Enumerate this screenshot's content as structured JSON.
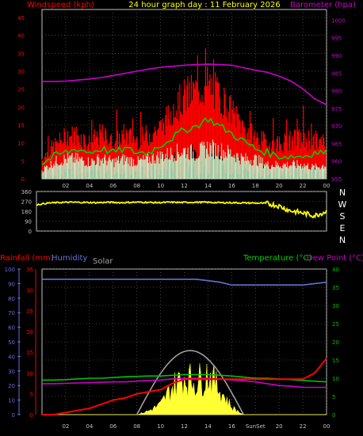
{
  "title": "24 hour graph day : 11 February 2026",
  "colors": {
    "wind": "#ff0000",
    "gust": "#ff2a2a",
    "avg": "#00d000",
    "calm": "#c8f0c8",
    "baro": "#cc00cc",
    "dir": "#ffff00",
    "rain": "#ff0000",
    "hum": "#6670d8",
    "solar": "#ffff33",
    "temp": "#00c000",
    "dew": "#cc00cc",
    "sun": "#a0a0a0",
    "grid": "#707070",
    "axis": "#c0c0c0"
  },
  "x_ticks": [
    "02",
    "04",
    "06",
    "08",
    "10",
    "12",
    "14",
    "16",
    "18",
    "20",
    "22",
    "00"
  ],
  "bottom_x_ticks": [
    "02",
    "04",
    "06",
    "08",
    "10",
    "12",
    "14",
    "16",
    "SunSet",
    "20",
    "22",
    "00"
  ],
  "chart_data": [
    {
      "type": "line",
      "name": "wind",
      "labels": {
        "left": "Windspeed (kph)",
        "right": "Barometer (hpa)"
      },
      "left_ticks": [
        "0",
        "5",
        "10",
        "15",
        "20",
        "25",
        "30",
        "35",
        "40",
        "45"
      ],
      "right_ticks": [
        "955",
        "960",
        "965",
        "970",
        "975",
        "980",
        "985",
        "990",
        "995",
        "1000"
      ],
      "ylim_left": [
        0,
        45
      ],
      "ylim_right": [
        955,
        1003
      ],
      "hours": [
        0,
        1,
        2,
        3,
        4,
        5,
        6,
        7,
        8,
        9,
        10,
        11,
        12,
        13,
        14,
        15,
        16,
        17,
        18,
        19,
        20,
        21,
        22,
        23,
        24
      ],
      "wind_max": [
        7,
        11,
        14,
        15,
        12,
        15,
        12,
        15,
        13,
        15,
        17,
        22,
        27,
        29,
        31,
        27,
        22,
        17,
        14,
        12,
        12,
        13,
        14,
        13,
        12
      ],
      "wind_min": [
        2,
        4,
        6,
        5,
        4,
        6,
        5,
        5,
        5,
        5,
        7,
        9,
        11,
        12,
        12,
        11,
        10,
        7,
        5,
        4,
        4,
        4,
        4,
        4,
        4
      ],
      "wind_avg": [
        4,
        6,
        7,
        8,
        7,
        8,
        7,
        8,
        7,
        7,
        9,
        11,
        13,
        14,
        16,
        14,
        12,
        10,
        8,
        7,
        6,
        6,
        6,
        7,
        7
      ],
      "calm_max": [
        3,
        6,
        7,
        7,
        6,
        7,
        6,
        7,
        6,
        7,
        8,
        9,
        10,
        9,
        11,
        10,
        9,
        7,
        7,
        5,
        5,
        5,
        5,
        4,
        5
      ],
      "barometer": [
        982.6,
        982.6,
        982.7,
        983.0,
        983.3,
        983.7,
        984.3,
        984.9,
        985.5,
        986.1,
        986.6,
        986.9,
        987.2,
        987.4,
        987.5,
        987.4,
        987.2,
        986.5,
        985.8,
        985.2,
        984.1,
        982.7,
        980.5,
        977.7,
        976.0
      ]
    },
    {
      "type": "line",
      "name": "direction",
      "left_ticks": [
        "0",
        "90",
        "180",
        "270",
        "360"
      ],
      "right_ticks": [
        "N",
        "E",
        "S",
        "W",
        "N"
      ],
      "ylim": [
        0,
        360
      ],
      "hours": [
        0,
        1,
        2,
        3,
        4,
        5,
        6,
        7,
        8,
        9,
        10,
        11,
        12,
        13,
        14,
        15,
        16,
        17,
        18,
        19,
        20,
        21,
        22,
        23,
        24
      ],
      "direction": [
        240,
        255,
        260,
        262,
        260,
        258,
        262,
        258,
        262,
        262,
        258,
        262,
        260,
        262,
        262,
        258,
        258,
        256,
        255,
        252,
        230,
        185,
        165,
        140,
        180
      ]
    },
    {
      "type": "line",
      "name": "rain_temp",
      "labels": {
        "rain": "Rainfall (mm)",
        "humidity": "Humidity",
        "solar": "Solar",
        "temp": "Temperature (°C)",
        "dew": "Dew Point (°C)"
      },
      "left1_ticks": [
        "0",
        "10",
        "20",
        "30",
        "40",
        "50",
        "60",
        "70",
        "80",
        "90",
        "100"
      ],
      "left2_ticks": [
        "0",
        "5",
        "10",
        "15",
        "20",
        "25",
        "30",
        "35"
      ],
      "right_ticks": [
        "0",
        "5",
        "10",
        "15",
        "20",
        "25",
        "30",
        "35",
        "40"
      ],
      "ylim_hum": [
        0,
        100
      ],
      "ylim_rain": [
        0,
        35
      ],
      "ylim_temp": [
        0,
        40
      ],
      "hours": [
        0,
        1,
        2,
        3,
        4,
        5,
        6,
        7,
        8,
        9,
        10,
        11,
        12,
        13,
        14,
        15,
        16,
        17,
        18,
        19,
        20,
        21,
        22,
        23,
        24
      ],
      "humidity": [
        93,
        93,
        93,
        93,
        93,
        93,
        93,
        93,
        93,
        93,
        93,
        93,
        93,
        93,
        92,
        91,
        89,
        89,
        89,
        89,
        89,
        89,
        89,
        90,
        91
      ],
      "rainfall": [
        0,
        0,
        0.5,
        1,
        1.5,
        2.5,
        3.5,
        4,
        5,
        5.5,
        6,
        7.5,
        8.5,
        8.5,
        8.5,
        8.5,
        8.5,
        8.5,
        8.5,
        8.5,
        8.5,
        8.5,
        8.5,
        10,
        13.5
      ],
      "temperature": [
        9.5,
        9.5,
        9.6,
        9.8,
        10,
        10,
        10.2,
        10.4,
        10.5,
        10.6,
        10.6,
        10.8,
        11,
        11,
        11,
        10.8,
        10.6,
        10.3,
        10,
        10,
        9.8,
        9.6,
        9.4,
        9.2,
        9
      ],
      "dewpoint": [
        8.5,
        8.5,
        8.6,
        8.7,
        8.8,
        8.9,
        9,
        9,
        9.2,
        9.4,
        9.5,
        9.8,
        10,
        10,
        10,
        9.8,
        9.5,
        9.3,
        9,
        8.5,
        8,
        7.8,
        7.5,
        7.5,
        7.5
      ],
      "solar_pct": [
        0,
        0,
        0,
        0,
        0,
        0,
        0,
        0,
        0,
        3,
        8,
        22,
        30,
        26,
        33,
        20,
        6,
        0,
        0,
        0,
        0,
        0,
        0,
        0,
        0
      ],
      "sun_curve_pct": [
        0,
        0,
        0,
        0,
        0,
        0,
        0,
        0,
        0,
        10,
        25,
        38,
        44,
        40,
        28,
        12,
        0,
        0,
        0,
        0,
        0,
        0,
        0,
        0,
        0
      ]
    }
  ]
}
